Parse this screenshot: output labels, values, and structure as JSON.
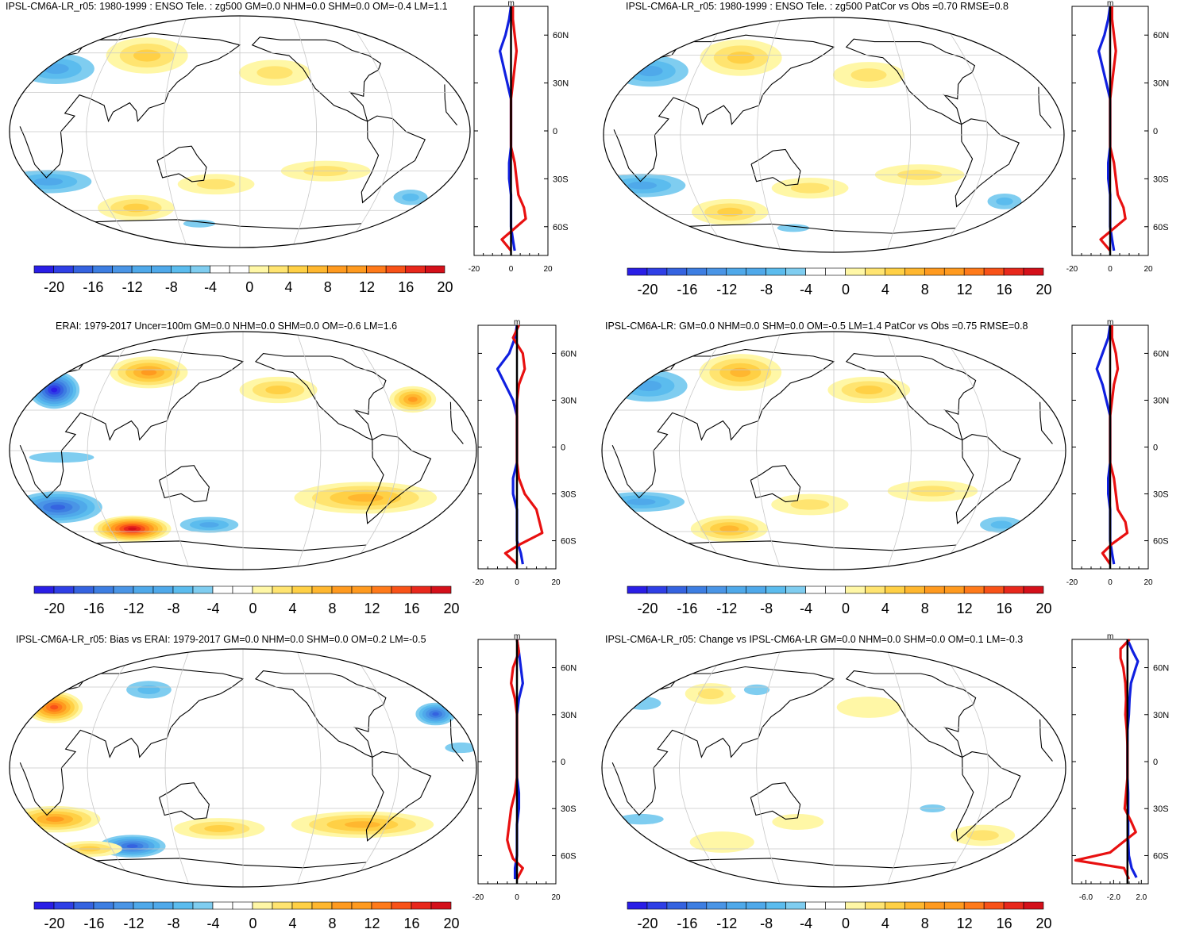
{
  "colors": {
    "scale": [
      "#2a1ee6",
      "#2f3fe6",
      "#3563e0",
      "#3d7ee2",
      "#4a95e6",
      "#4fa9ea",
      "#5bbcee",
      "#7fcdf0",
      "#ffffff",
      "#ffffff",
      "#fff7a6",
      "#ffe470",
      "#ffd045",
      "#ffb72f",
      "#ff9a1f",
      "#ff7a1a",
      "#f85218",
      "#e8281c",
      "#d4101a"
    ],
    "coast": "#000000",
    "grid": "#c8c8c8",
    "model_line": "#e81010",
    "obs_line": "#1020e0",
    "zero_line": "#000000"
  },
  "colorbar": {
    "labels": [
      "-20",
      "-16",
      "-12",
      "-8",
      "-4",
      "0",
      "4",
      "8",
      "12",
      "16",
      "20"
    ]
  },
  "latitude_labels": [
    "60N",
    "30N",
    "0",
    "30S",
    "60S"
  ],
  "profile_unit": "m",
  "panels": [
    {
      "id": "p1",
      "title": "IPSL-CM6A-LR_r05: 1980-1999 : ENSO Tele. : zg500 GM=0.0 NHM=0.0 SHM=0.0 OM=-0.4 LM=1.1",
      "profile_ticks": [
        "-20",
        "0",
        "20"
      ],
      "patches": [
        {
          "lon": -160,
          "lat": 48,
          "rx": 40,
          "ry": 16,
          "v": -7
        },
        {
          "lon": -85,
          "lat": 58,
          "rx": 32,
          "ry": 14,
          "v": 6
        },
        {
          "lon": 30,
          "lat": 45,
          "rx": 28,
          "ry": 10,
          "v": 4
        },
        {
          "lon": -160,
          "lat": -38,
          "rx": 45,
          "ry": 12,
          "v": -7
        },
        {
          "lon": -95,
          "lat": -58,
          "rx": 30,
          "ry": 10,
          "v": 6
        },
        {
          "lon": 150,
          "lat": -50,
          "rx": 20,
          "ry": 9,
          "v": -5
        },
        {
          "lon": 70,
          "lat": -30,
          "rx": 35,
          "ry": 8,
          "v": 3
        },
        {
          "lon": -40,
          "lat": -70,
          "rx": 25,
          "ry": 6,
          "v": -4
        },
        {
          "lon": -20,
          "lat": -40,
          "rx": 30,
          "ry": 8,
          "v": 3
        }
      ],
      "red_profile": [
        [
          78,
          1
        ],
        [
          70,
          1
        ],
        [
          60,
          2
        ],
        [
          50,
          3
        ],
        [
          40,
          2
        ],
        [
          30,
          1
        ],
        [
          20,
          0
        ],
        [
          10,
          0
        ],
        [
          0,
          0
        ],
        [
          -10,
          0
        ],
        [
          -20,
          2
        ],
        [
          -30,
          3
        ],
        [
          -40,
          4
        ],
        [
          -48,
          7
        ],
        [
          -55,
          8
        ],
        [
          -62,
          1
        ],
        [
          -68,
          -5
        ],
        [
          -75,
          0
        ]
      ],
      "blue_profile": [
        [
          78,
          0
        ],
        [
          70,
          -1
        ],
        [
          60,
          -3
        ],
        [
          50,
          -6
        ],
        [
          40,
          -4
        ],
        [
          30,
          -2
        ],
        [
          20,
          0
        ],
        [
          10,
          0
        ],
        [
          0,
          0
        ],
        [
          -10,
          0
        ],
        [
          -20,
          -1
        ],
        [
          -30,
          -1
        ],
        [
          -40,
          0
        ],
        [
          -50,
          0
        ],
        [
          -60,
          0
        ],
        [
          -68,
          1
        ],
        [
          -75,
          2
        ]
      ]
    },
    {
      "id": "p2",
      "title": "IPSL-CM6A-LR_r05: 1980-1999 : ENSO Tele. : zg500 PatCor vs Obs =0.70 RMSE=0.8",
      "profile_ticks": [
        "-20",
        "0",
        "20"
      ],
      "patches": [
        {
          "lon": -160,
          "lat": 48,
          "rx": 40,
          "ry": 16,
          "v": -7
        },
        {
          "lon": -85,
          "lat": 58,
          "rx": 32,
          "ry": 14,
          "v": 6
        },
        {
          "lon": 30,
          "lat": 45,
          "rx": 28,
          "ry": 10,
          "v": 4
        },
        {
          "lon": -160,
          "lat": -38,
          "rx": 45,
          "ry": 12,
          "v": -7
        },
        {
          "lon": -95,
          "lat": -58,
          "rx": 30,
          "ry": 10,
          "v": 6
        },
        {
          "lon": 150,
          "lat": -50,
          "rx": 20,
          "ry": 9,
          "v": -5
        },
        {
          "lon": 70,
          "lat": -30,
          "rx": 35,
          "ry": 8,
          "v": 3
        },
        {
          "lon": -40,
          "lat": -70,
          "rx": 25,
          "ry": 6,
          "v": -4
        },
        {
          "lon": -20,
          "lat": -40,
          "rx": 30,
          "ry": 8,
          "v": 3
        }
      ],
      "red_profile": [
        [
          78,
          1
        ],
        [
          70,
          1
        ],
        [
          60,
          2
        ],
        [
          50,
          3
        ],
        [
          40,
          2
        ],
        [
          30,
          1
        ],
        [
          20,
          0
        ],
        [
          10,
          0
        ],
        [
          0,
          0
        ],
        [
          -10,
          0
        ],
        [
          -20,
          2
        ],
        [
          -30,
          3
        ],
        [
          -40,
          4
        ],
        [
          -48,
          7
        ],
        [
          -55,
          8
        ],
        [
          -62,
          1
        ],
        [
          -68,
          -5
        ],
        [
          -75,
          0
        ]
      ],
      "blue_profile": [
        [
          78,
          0
        ],
        [
          70,
          -1
        ],
        [
          60,
          -3
        ],
        [
          50,
          -6
        ],
        [
          40,
          -4
        ],
        [
          30,
          -2
        ],
        [
          20,
          0
        ],
        [
          10,
          0
        ],
        [
          0,
          0
        ],
        [
          -10,
          0
        ],
        [
          -20,
          -1
        ],
        [
          -30,
          -1
        ],
        [
          -40,
          0
        ],
        [
          -50,
          0
        ],
        [
          -60,
          0
        ],
        [
          -68,
          1
        ],
        [
          -75,
          2
        ]
      ]
    },
    {
      "id": "p3",
      "title": "ERAI: 1979-2017 Uncer=100m GM=0.0 NHM=0.0 SHM=0.0 OM=-0.6 LM=1.6",
      "profile_ticks": [
        "-20",
        "0",
        "20"
      ],
      "patches": [
        {
          "lon": -160,
          "lat": 45,
          "rx": 22,
          "ry": 16,
          "v": -18
        },
        {
          "lon": -85,
          "lat": 58,
          "rx": 30,
          "ry": 12,
          "v": 9
        },
        {
          "lon": 140,
          "lat": 38,
          "rx": 18,
          "ry": 10,
          "v": 10
        },
        {
          "lon": 30,
          "lat": 45,
          "rx": 30,
          "ry": 10,
          "v": 5
        },
        {
          "lon": -155,
          "lat": -42,
          "rx": 40,
          "ry": 14,
          "v": -14
        },
        {
          "lon": -100,
          "lat": -58,
          "rx": 30,
          "ry": 10,
          "v": 18
        },
        {
          "lon": 100,
          "lat": -35,
          "rx": 55,
          "ry": 12,
          "v": 7
        },
        {
          "lon": -30,
          "lat": -55,
          "rx": 30,
          "ry": 8,
          "v": -8
        },
        {
          "lon": -140,
          "lat": -5,
          "rx": 50,
          "ry": 8,
          "v": -4
        }
      ],
      "red_profile": [
        [
          78,
          1
        ],
        [
          70,
          -2
        ],
        [
          60,
          3
        ],
        [
          50,
          4
        ],
        [
          40,
          1
        ],
        [
          30,
          0
        ],
        [
          20,
          0
        ],
        [
          10,
          0
        ],
        [
          0,
          0
        ],
        [
          -10,
          0
        ],
        [
          -20,
          1
        ],
        [
          -30,
          4
        ],
        [
          -40,
          10
        ],
        [
          -50,
          12
        ],
        [
          -55,
          13
        ],
        [
          -62,
          2
        ],
        [
          -68,
          -6
        ],
        [
          -75,
          0
        ]
      ],
      "blue_profile": [
        [
          78,
          0
        ],
        [
          70,
          -1
        ],
        [
          60,
          -4
        ],
        [
          50,
          -10
        ],
        [
          40,
          -6
        ],
        [
          30,
          -2
        ],
        [
          20,
          0
        ],
        [
          10,
          0
        ],
        [
          0,
          0
        ],
        [
          -10,
          0
        ],
        [
          -20,
          -2
        ],
        [
          -30,
          -2
        ],
        [
          -40,
          0
        ],
        [
          -50,
          0
        ],
        [
          -60,
          0
        ],
        [
          -68,
          2
        ],
        [
          -75,
          3
        ]
      ]
    },
    {
      "id": "p4",
      "title": "IPSL-CM6A-LR: GM=0.0 NHM=0.0 SHM=0.0 OM=-0.5 LM=1.4 PatCor vs Obs =0.75 RMSE=0.8",
      "profile_ticks": [
        "-20",
        "0",
        "20"
      ],
      "patches": [
        {
          "lon": -160,
          "lat": 48,
          "rx": 40,
          "ry": 16,
          "v": -8
        },
        {
          "lon": -85,
          "lat": 58,
          "rx": 32,
          "ry": 14,
          "v": 7
        },
        {
          "lon": 30,
          "lat": 45,
          "rx": 32,
          "ry": 10,
          "v": 5
        },
        {
          "lon": -160,
          "lat": -38,
          "rx": 45,
          "ry": 10,
          "v": -8
        },
        {
          "lon": -95,
          "lat": -58,
          "rx": 30,
          "ry": 10,
          "v": 8
        },
        {
          "lon": 150,
          "lat": -55,
          "rx": 25,
          "ry": 9,
          "v": -5
        },
        {
          "lon": 80,
          "lat": -30,
          "rx": 35,
          "ry": 8,
          "v": 4
        },
        {
          "lon": -20,
          "lat": -40,
          "rx": 30,
          "ry": 8,
          "v": 3
        }
      ],
      "red_profile": [
        [
          78,
          1
        ],
        [
          70,
          1
        ],
        [
          60,
          3
        ],
        [
          50,
          4
        ],
        [
          40,
          2
        ],
        [
          30,
          1
        ],
        [
          20,
          0
        ],
        [
          10,
          0
        ],
        [
          0,
          0
        ],
        [
          -10,
          0
        ],
        [
          -20,
          2
        ],
        [
          -30,
          3
        ],
        [
          -40,
          4
        ],
        [
          -48,
          8
        ],
        [
          -55,
          9
        ],
        [
          -62,
          1
        ],
        [
          -68,
          -4
        ],
        [
          -75,
          0
        ]
      ],
      "blue_profile": [
        [
          78,
          0
        ],
        [
          70,
          -1
        ],
        [
          60,
          -4
        ],
        [
          50,
          -7
        ],
        [
          40,
          -4
        ],
        [
          30,
          -2
        ],
        [
          20,
          0
        ],
        [
          10,
          0
        ],
        [
          0,
          0
        ],
        [
          -10,
          0
        ],
        [
          -20,
          -1
        ],
        [
          -30,
          -1
        ],
        [
          -40,
          0
        ],
        [
          -50,
          0
        ],
        [
          -60,
          0
        ],
        [
          -68,
          1
        ],
        [
          -75,
          2
        ]
      ]
    },
    {
      "id": "p5",
      "title": "IPSL-CM6A-LR_r05: Bias vs ERAI: 1979-2017 GM=0.0 NHM=0.0 SHM=0.0 OM=0.2 LM=-0.5",
      "profile_ticks": [
        "-20",
        "0",
        "20"
      ],
      "patches": [
        {
          "lon": 160,
          "lat": 40,
          "rx": 18,
          "ry": 10,
          "v": -14
        },
        {
          "lon": -160,
          "lat": 45,
          "rx": 22,
          "ry": 12,
          "v": 14
        },
        {
          "lon": -85,
          "lat": 58,
          "rx": 26,
          "ry": 10,
          "v": -6
        },
        {
          "lon": -155,
          "lat": -38,
          "rx": 35,
          "ry": 10,
          "v": 10
        },
        {
          "lon": -100,
          "lat": -58,
          "rx": 30,
          "ry": 10,
          "v": -14
        },
        {
          "lon": 100,
          "lat": -42,
          "rx": 55,
          "ry": 10,
          "v": 7
        },
        {
          "lon": -20,
          "lat": -45,
          "rx": 35,
          "ry": 8,
          "v": 5
        },
        {
          "lon": 170,
          "lat": 15,
          "rx": 25,
          "ry": 8,
          "v": -4
        },
        {
          "lon": -140,
          "lat": -60,
          "rx": 25,
          "ry": 6,
          "v": 6
        }
      ],
      "red_profile": [
        [
          78,
          0
        ],
        [
          70,
          1
        ],
        [
          60,
          -2
        ],
        [
          50,
          -3
        ],
        [
          40,
          -1
        ],
        [
          30,
          0
        ],
        [
          20,
          0
        ],
        [
          10,
          0
        ],
        [
          0,
          0
        ],
        [
          -10,
          0
        ],
        [
          -20,
          -1
        ],
        [
          -30,
          -3
        ],
        [
          -40,
          -4
        ],
        [
          -50,
          -5
        ],
        [
          -55,
          -4
        ],
        [
          -62,
          -2
        ],
        [
          -68,
          3
        ],
        [
          -75,
          0
        ]
      ],
      "blue_profile": [
        [
          78,
          0
        ],
        [
          70,
          1
        ],
        [
          60,
          2
        ],
        [
          50,
          3
        ],
        [
          40,
          1
        ],
        [
          30,
          0
        ],
        [
          20,
          0
        ],
        [
          10,
          0
        ],
        [
          0,
          0
        ],
        [
          -10,
          0
        ],
        [
          -20,
          1
        ],
        [
          -30,
          1
        ],
        [
          -40,
          0
        ],
        [
          -50,
          0
        ],
        [
          -60,
          0
        ],
        [
          -68,
          -1
        ],
        [
          -75,
          -1
        ]
      ]
    },
    {
      "id": "p6",
      "title": "IPSL-CM6A-LR_r05: Change vs IPSL-CM6A-LR GM=0.0 NHM=0.0 SHM=0.0 OM=0.1 LM=-0.3",
      "profile_ticks": [
        "-6.0",
        "-2.0",
        "2.0"
      ],
      "patches": [
        {
          "lon": -165,
          "lat": 48,
          "rx": 28,
          "ry": 10,
          "v": -4
        },
        {
          "lon": -110,
          "lat": 55,
          "rx": 20,
          "ry": 8,
          "v": 3
        },
        {
          "lon": -70,
          "lat": 58,
          "rx": 20,
          "ry": 8,
          "v": -4
        },
        {
          "lon": 30,
          "lat": 45,
          "rx": 25,
          "ry": 8,
          "v": 2
        },
        {
          "lon": -160,
          "lat": -38,
          "rx": 35,
          "ry": 8,
          "v": -4
        },
        {
          "lon": 130,
          "lat": -50,
          "rx": 25,
          "ry": 8,
          "v": 3
        },
        {
          "lon": -100,
          "lat": -55,
          "rx": 25,
          "ry": 8,
          "v": 2
        },
        {
          "lon": 80,
          "lat": -30,
          "rx": 20,
          "ry": 6,
          "v": -3
        },
        {
          "lon": -30,
          "lat": -40,
          "rx": 20,
          "ry": 6,
          "v": 2
        }
      ],
      "red_profile": [
        [
          78,
          0.3
        ],
        [
          72,
          -1.0
        ],
        [
          66,
          -1.0
        ],
        [
          60,
          -0.6
        ],
        [
          50,
          -0.3
        ],
        [
          40,
          -0.2
        ],
        [
          30,
          -0.3
        ],
        [
          20,
          -0.1
        ],
        [
          10,
          0
        ],
        [
          0,
          0
        ],
        [
          -10,
          0
        ],
        [
          -20,
          -0.2
        ],
        [
          -30,
          -0.4
        ],
        [
          -38,
          0.5
        ],
        [
          -45,
          1.2
        ],
        [
          -52,
          -0.8
        ],
        [
          -58,
          -2.5
        ],
        [
          -63,
          -7.5
        ],
        [
          -68,
          -0.5
        ],
        [
          -75,
          0.2
        ]
      ],
      "blue_profile": [
        [
          78,
          0
        ],
        [
          70,
          0.8
        ],
        [
          64,
          1.5
        ],
        [
          60,
          1.2
        ],
        [
          50,
          0.5
        ],
        [
          40,
          0.3
        ],
        [
          30,
          0.2
        ],
        [
          20,
          0
        ],
        [
          10,
          0
        ],
        [
          0,
          0
        ],
        [
          -10,
          0
        ],
        [
          -20,
          0.1
        ],
        [
          -30,
          0.1
        ],
        [
          -40,
          0.1
        ],
        [
          -50,
          0.1
        ],
        [
          -60,
          0.2
        ],
        [
          -68,
          0.6
        ],
        [
          -74,
          1.3
        ]
      ]
    }
  ]
}
